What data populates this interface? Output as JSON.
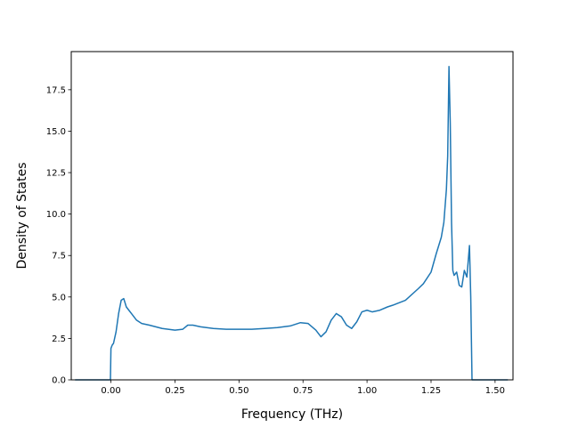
{
  "chart_data": {
    "type": "line",
    "title": "",
    "xlabel": "Frequency (THz)",
    "ylabel": "Density of States",
    "xlim": [
      -0.155,
      1.57
    ],
    "ylim": [
      0,
      19.8
    ],
    "xticks": [
      0.0,
      0.25,
      0.5,
      0.75,
      1.0,
      1.25,
      1.5
    ],
    "xtick_labels": [
      "0.00",
      "0.25",
      "0.50",
      "0.75",
      "1.00",
      "1.25",
      "1.50"
    ],
    "yticks": [
      0.0,
      2.5,
      5.0,
      7.5,
      10.0,
      12.5,
      15.0,
      17.5
    ],
    "ytick_labels": [
      "0.0",
      "2.5",
      "5.0",
      "7.5",
      "10.0",
      "12.5",
      "15.0",
      "17.5"
    ],
    "grid": false,
    "legend": "none",
    "series": [
      {
        "color": "#1f77b4",
        "x": [
          -0.14,
          -0.01,
          -0.002,
          0.0,
          0.005,
          0.01,
          0.02,
          0.03,
          0.04,
          0.05,
          0.06,
          0.07,
          0.08,
          0.09,
          0.1,
          0.12,
          0.15,
          0.2,
          0.25,
          0.28,
          0.3,
          0.32,
          0.35,
          0.4,
          0.45,
          0.5,
          0.55,
          0.6,
          0.65,
          0.7,
          0.74,
          0.77,
          0.8,
          0.82,
          0.84,
          0.86,
          0.88,
          0.9,
          0.92,
          0.94,
          0.96,
          0.98,
          1.0,
          1.02,
          1.05,
          1.08,
          1.1,
          1.15,
          1.2,
          1.22,
          1.25,
          1.27,
          1.29,
          1.3,
          1.31,
          1.315,
          1.32,
          1.325,
          1.33,
          1.335,
          1.34,
          1.35,
          1.36,
          1.37,
          1.38,
          1.39,
          1.4,
          1.405,
          1.41,
          1.415,
          1.43,
          1.5,
          1.55
        ],
        "y": [
          0.0,
          0.0,
          0.0,
          1.9,
          2.1,
          2.2,
          2.9,
          4.0,
          4.8,
          4.9,
          4.4,
          4.2,
          4.0,
          3.8,
          3.6,
          3.4,
          3.3,
          3.1,
          3.0,
          3.05,
          3.3,
          3.3,
          3.2,
          3.1,
          3.05,
          3.05,
          3.05,
          3.1,
          3.15,
          3.25,
          3.45,
          3.4,
          3.0,
          2.6,
          2.9,
          3.6,
          4.0,
          3.8,
          3.3,
          3.1,
          3.5,
          4.1,
          4.2,
          4.1,
          4.2,
          4.4,
          4.5,
          4.8,
          5.5,
          5.8,
          6.5,
          7.6,
          8.6,
          9.5,
          11.5,
          13.5,
          18.9,
          15.5,
          9.5,
          6.6,
          6.3,
          6.5,
          5.7,
          5.6,
          6.6,
          6.2,
          8.1,
          5.0,
          0.0,
          0.0,
          0.0,
          0.0,
          0.0
        ]
      }
    ]
  }
}
